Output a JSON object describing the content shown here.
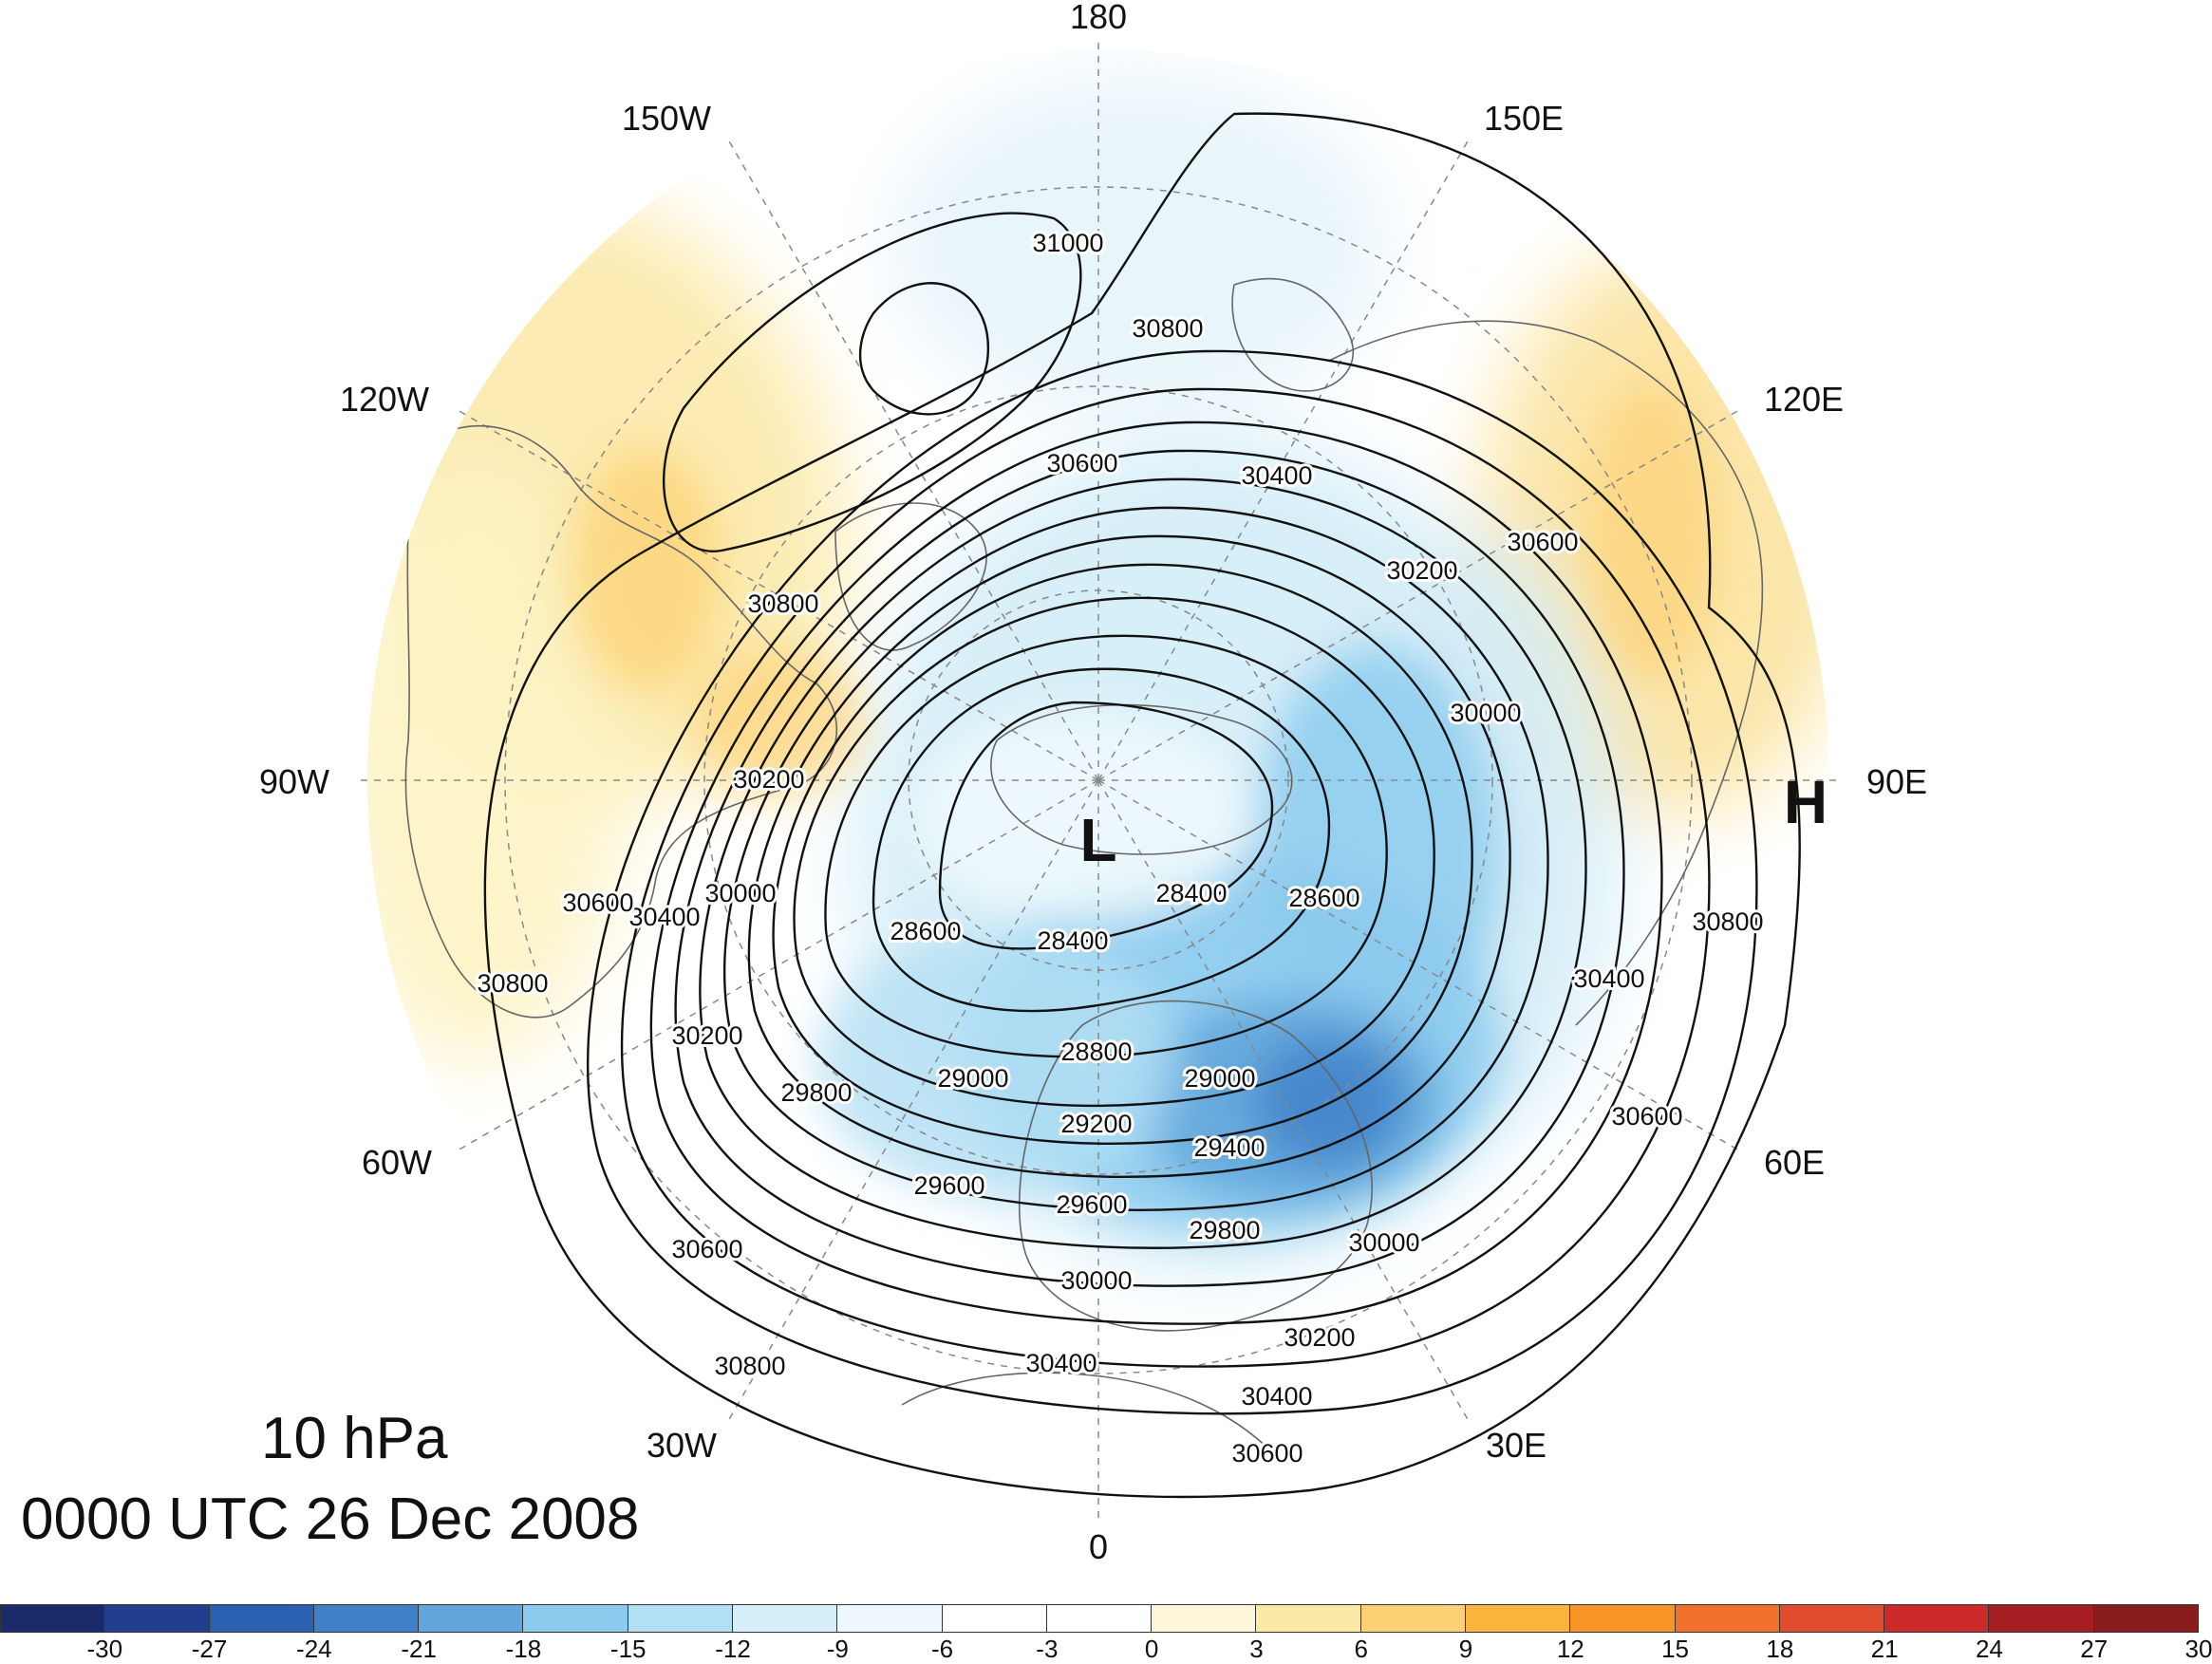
{
  "title": {
    "level": "10 hPa",
    "time": "0000 UTC 26 Dec 2008"
  },
  "longitude_labels": [
    "180",
    "150E",
    "120E",
    "90E",
    "60E",
    "30E",
    "0",
    "30W",
    "60W",
    "90W",
    "120W",
    "150W"
  ],
  "centers": [
    {
      "name": "low-center",
      "text": "L"
    },
    {
      "name": "high-center",
      "text": "H"
    }
  ],
  "contour_levels": [
    "28400",
    "28600",
    "28800",
    "29000",
    "29200",
    "29400",
    "29600",
    "29800",
    "30000",
    "30200",
    "30400",
    "30600",
    "30800",
    "31000"
  ],
  "colorbar": {
    "colors": [
      "#1b2a68",
      "#213e8f",
      "#2b5fb0",
      "#3f80c8",
      "#63a6dd",
      "#8ccbee",
      "#b3dff4",
      "#d5eef8",
      "#eef8fc",
      "#ffffff",
      "#ffffff",
      "#fdf6da",
      "#fbe9a6",
      "#fcd176",
      "#fbb53f",
      "#f79527",
      "#f0712a",
      "#e04c2e",
      "#cc2a2a",
      "#a51f22",
      "#8b1c1e"
    ],
    "labels": [
      "-30",
      "-27",
      "-24",
      "-21",
      "-18",
      "-15",
      "-12",
      "-9",
      "-6",
      "-3",
      "0",
      "3",
      "6",
      "9",
      "12",
      "15",
      "18",
      "21",
      "24",
      "27",
      "30"
    ]
  }
}
